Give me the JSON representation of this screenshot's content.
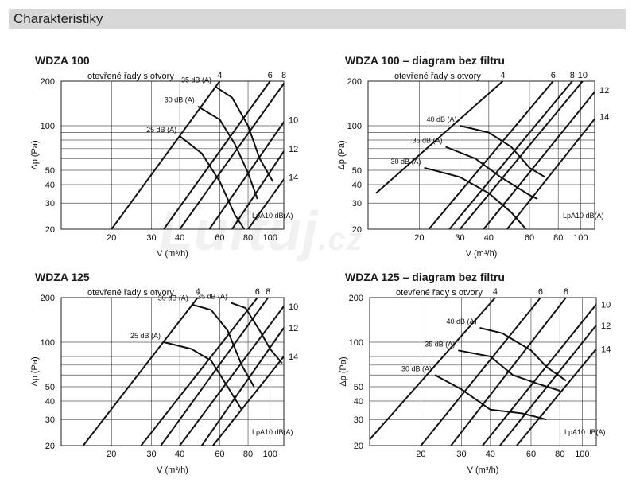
{
  "section": {
    "title": "Charakteristiky"
  },
  "watermark": {
    "text": "Luftuj",
    "suffix": ".cz"
  },
  "chart_data": [
    {
      "type": "line",
      "title": "WDZA 100",
      "subtitle": "otevřené řady s otvory",
      "xlabel": "V (m³/h)",
      "ylabel": "Δp (Pa)",
      "xscale": "log",
      "yscale": "log",
      "xlim": [
        12,
        115
      ],
      "ylim": [
        20,
        200
      ],
      "xticks": [
        20,
        30,
        40,
        60,
        80,
        100
      ],
      "yticks": [
        20,
        30,
        40,
        50,
        100,
        200
      ],
      "unit_note": "LpA10 dB(A)",
      "series_lines": [
        {
          "name": "4",
          "points": [
            [
              20,
              20
            ],
            [
              60,
              200
            ]
          ]
        },
        {
          "name": "6",
          "points": [
            [
              34,
              20
            ],
            [
              100,
              200
            ]
          ]
        },
        {
          "name": "8",
          "points": [
            [
              40,
              20
            ],
            [
              117,
              200
            ]
          ]
        },
        {
          "name": "10",
          "points": [
            [
              54,
              20
            ],
            [
              117,
              110
            ]
          ]
        },
        {
          "name": "12",
          "points": [
            [
              68,
              20
            ],
            [
              117,
              70
            ]
          ]
        },
        {
          "name": "14",
          "points": [
            [
              80,
              20
            ],
            [
              117,
              45
            ]
          ]
        }
      ],
      "sound_curves": [
        {
          "name": "25 dB (A)",
          "points": [
            [
              40,
              85
            ],
            [
              50,
              65
            ],
            [
              60,
              42
            ],
            [
              70,
              25
            ],
            [
              77,
              20
            ]
          ]
        },
        {
          "name": "30 dB (A)",
          "points": [
            [
              48,
              135
            ],
            [
              60,
              110
            ],
            [
              70,
              75
            ],
            [
              80,
              48
            ],
            [
              88,
              32
            ]
          ]
        },
        {
          "name": "35 dB (A)",
          "points": [
            [
              57,
              185
            ],
            [
              68,
              155
            ],
            [
              80,
              100
            ],
            [
              90,
              60
            ],
            [
              103,
              42
            ]
          ]
        }
      ]
    },
    {
      "type": "line",
      "title": "WDZA 100 – diagram bez filtru",
      "subtitle": "otevřené řady s otvory",
      "xlabel": "V (m³/h)",
      "ylabel": "Δp (Pa)",
      "xscale": "log",
      "yscale": "log",
      "xlim": [
        12,
        115
      ],
      "ylim": [
        20,
        200
      ],
      "xticks": [
        20,
        30,
        40,
        60,
        80,
        100
      ],
      "yticks": [
        20,
        30,
        40,
        50,
        100,
        200
      ],
      "unit_note": "LpA10 dB(A)",
      "series_lines": [
        {
          "name": "4",
          "points": [
            [
              13,
              35
            ],
            [
              46,
              200
            ]
          ]
        },
        {
          "name": "6",
          "points": [
            [
              22,
              20
            ],
            [
              76,
              200
            ]
          ]
        },
        {
          "name": "8",
          "points": [
            [
              27,
              20
            ],
            [
              92,
              200
            ]
          ]
        },
        {
          "name": "10",
          "points": [
            [
              30,
              20
            ],
            [
              102,
              200
            ]
          ]
        },
        {
          "name": "12",
          "points": [
            [
              38,
              20
            ],
            [
              117,
              175
            ]
          ]
        },
        {
          "name": "14",
          "points": [
            [
              48,
              20
            ],
            [
              117,
              115
            ]
          ]
        }
      ],
      "sound_curves": [
        {
          "name": "30 dB (A)",
          "points": [
            [
              21,
              52
            ],
            [
              30,
              45
            ],
            [
              40,
              35
            ],
            [
              50,
              26
            ],
            [
              58,
              20
            ]
          ]
        },
        {
          "name": "35 dB (A)",
          "points": [
            [
              26,
              72
            ],
            [
              35,
              60
            ],
            [
              45,
              45
            ],
            [
              60,
              34
            ],
            [
              65,
              32
            ]
          ]
        },
        {
          "name": "40 dB (A)",
          "points": [
            [
              30,
              100
            ],
            [
              40,
              90
            ],
            [
              50,
              72
            ],
            [
              60,
              52
            ],
            [
              70,
              45
            ]
          ]
        }
      ]
    },
    {
      "type": "line",
      "title": "WDZA 125",
      "subtitle": "otevřené řady s otvory",
      "xlabel": "V (m³/h)",
      "ylabel": "Δp (Pa)",
      "xscale": "log",
      "yscale": "log",
      "xlim": [
        12,
        115
      ],
      "ylim": [
        20,
        200
      ],
      "xticks": [
        20,
        30,
        40,
        60,
        80,
        100
      ],
      "yticks": [
        20,
        30,
        40,
        50,
        100,
        200
      ],
      "unit_note": "LpA10 dB(A)",
      "series_lines": [
        {
          "name": "4",
          "points": [
            [
              15,
              20
            ],
            [
              48,
              200
            ]
          ]
        },
        {
          "name": "6",
          "points": [
            [
              27,
              20
            ],
            [
              88,
              200
            ]
          ]
        },
        {
          "name": "8",
          "points": [
            [
              33,
              20
            ],
            [
              98,
              200
            ]
          ]
        },
        {
          "name": "10",
          "points": [
            [
              40,
              20
            ],
            [
              115,
              175
            ]
          ]
        },
        {
          "name": "12",
          "points": [
            [
              50,
              20
            ],
            [
              115,
              125
            ]
          ]
        },
        {
          "name": "14",
          "points": [
            [
              56,
              20
            ],
            [
              115,
              80
            ]
          ]
        }
      ],
      "sound_curves": [
        {
          "name": "25 dB (A)",
          "points": [
            [
              34,
              100
            ],
            [
              45,
              90
            ],
            [
              55,
              75
            ],
            [
              65,
              50
            ],
            [
              75,
              35
            ]
          ]
        },
        {
          "name": "30 dB (A)",
          "points": [
            [
              45,
              180
            ],
            [
              55,
              165
            ],
            [
              65,
              120
            ],
            [
              75,
              70
            ],
            [
              85,
              50
            ]
          ]
        },
        {
          "name": "35 dB (A)",
          "points": [
            [
              67,
              185
            ],
            [
              78,
              170
            ],
            [
              90,
              120
            ],
            [
              100,
              90
            ],
            [
              113,
              72
            ]
          ]
        }
      ]
    },
    {
      "type": "line",
      "title": "WDZA 125 – diagram bez filtru",
      "subtitle": "otevřené řady s otvory",
      "xlabel": "V (m³/h)",
      "ylabel": "Δp (Pa)",
      "xscale": "log",
      "yscale": "log",
      "xlim": [
        12,
        115
      ],
      "ylim": [
        20,
        200
      ],
      "xticks": [
        20,
        30,
        40,
        60,
        80,
        100
      ],
      "yticks": [
        20,
        30,
        40,
        50,
        100,
        200
      ],
      "unit_note": "LpA10 dB(A)",
      "series_lines": [
        {
          "name": "4",
          "points": [
            [
              12,
              22
            ],
            [
              42,
              200
            ]
          ]
        },
        {
          "name": "6",
          "points": [
            [
              20,
              20
            ],
            [
              66,
              200
            ]
          ]
        },
        {
          "name": "8",
          "points": [
            [
              27,
              20
            ],
            [
              85,
              200
            ]
          ]
        },
        {
          "name": "10",
          "points": [
            [
              37,
              20
            ],
            [
              115,
              180
            ]
          ]
        },
        {
          "name": "12",
          "points": [
            [
              44,
              20
            ],
            [
              115,
              130
            ]
          ]
        },
        {
          "name": "14",
          "points": [
            [
              52,
              20
            ],
            [
              115,
              90
            ]
          ]
        }
      ],
      "sound_curves": [
        {
          "name": "30 dB (A)",
          "points": [
            [
              23,
              60
            ],
            [
              30,
              48
            ],
            [
              40,
              35
            ],
            [
              55,
              33
            ],
            [
              70,
              30
            ]
          ]
        },
        {
          "name": "35 dB (A)",
          "points": [
            [
              29,
              88
            ],
            [
              40,
              80
            ],
            [
              50,
              60
            ],
            [
              65,
              52
            ],
            [
              80,
              47
            ]
          ]
        },
        {
          "name": "40 dB (A)",
          "points": [
            [
              36,
              125
            ],
            [
              45,
              115
            ],
            [
              60,
              88
            ],
            [
              70,
              68
            ],
            [
              85,
              55
            ]
          ]
        }
      ]
    }
  ]
}
